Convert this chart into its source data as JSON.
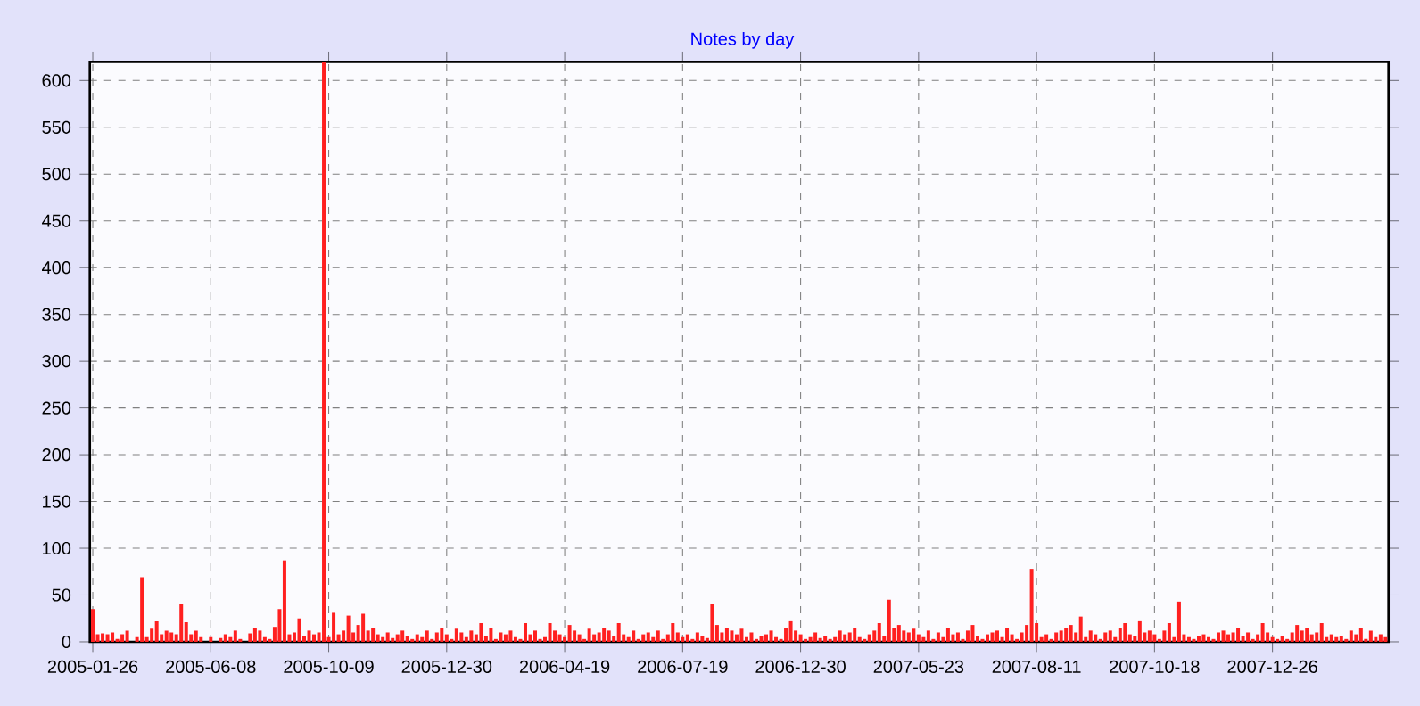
{
  "chart_data": {
    "type": "bar",
    "title": "Notes by day",
    "categories": [
      "2005-01-26",
      null,
      null,
      null,
      null,
      null,
      null,
      null,
      null,
      null,
      null,
      null,
      null,
      null,
      null,
      null,
      null,
      null,
      null,
      null,
      null,
      null,
      null,
      null,
      "2005-06-08",
      null,
      null,
      null,
      null,
      null,
      null,
      null,
      null,
      null,
      null,
      null,
      null,
      null,
      null,
      null,
      null,
      null,
      null,
      null,
      null,
      null,
      null,
      null,
      "2005-10-09",
      null,
      null,
      null,
      null,
      null,
      null,
      null,
      null,
      null,
      null,
      null,
      null,
      null,
      null,
      null,
      null,
      null,
      null,
      null,
      null,
      null,
      null,
      null,
      "2005-12-30",
      null,
      null,
      null,
      null,
      null,
      null,
      null,
      null,
      null,
      null,
      null,
      null,
      null,
      null,
      null,
      null,
      null,
      null,
      null,
      null,
      null,
      null,
      null,
      "2006-04-19",
      null,
      null,
      null,
      null,
      null,
      null,
      null,
      null,
      null,
      null,
      null,
      null,
      null,
      null,
      null,
      null,
      null,
      null,
      null,
      null,
      null,
      null,
      null,
      "2006-07-19",
      null,
      null,
      null,
      null,
      null,
      null,
      null,
      null,
      null,
      null,
      null,
      null,
      null,
      null,
      null,
      null,
      null,
      null,
      null,
      null,
      null,
      null,
      null,
      "2006-12-30",
      null,
      null,
      null,
      null,
      null,
      null,
      null,
      null,
      null,
      null,
      null,
      null,
      null,
      null,
      null,
      null,
      null,
      null,
      null,
      null,
      null,
      null,
      null,
      "2007-05-23",
      null,
      null,
      null,
      null,
      null,
      null,
      null,
      null,
      null,
      null,
      null,
      null,
      null,
      null,
      null,
      null,
      null,
      null,
      null,
      null,
      null,
      null,
      null,
      "2007-08-11",
      null,
      null,
      null,
      null,
      null,
      null,
      null,
      null,
      null,
      null,
      null,
      null,
      null,
      null,
      null,
      null,
      null,
      null,
      null,
      null,
      null,
      null,
      null,
      "2007-10-18",
      null,
      null,
      null,
      null,
      null,
      null,
      null,
      null,
      null,
      null,
      null,
      null,
      null,
      null,
      null,
      null,
      null,
      null,
      null,
      null,
      null,
      null,
      null,
      "2007-12-26",
      null,
      null,
      null,
      null,
      null,
      null,
      null,
      null,
      null,
      null,
      null,
      null,
      null,
      null,
      null,
      null,
      null,
      null,
      null,
      null,
      null,
      null,
      null
    ],
    "values": [
      35,
      8,
      9,
      8,
      10,
      3,
      8,
      12,
      0,
      5,
      69,
      5,
      14,
      22,
      8,
      12,
      10,
      8,
      40,
      21,
      8,
      12,
      5,
      0,
      5,
      0,
      4,
      8,
      5,
      12,
      3,
      0,
      9,
      15,
      12,
      5,
      3,
      16,
      35,
      87,
      8,
      10,
      25,
      6,
      12,
      8,
      10,
      620,
      5,
      31,
      8,
      12,
      28,
      10,
      18,
      30,
      12,
      15,
      8,
      5,
      10,
      4,
      8,
      12,
      6,
      3,
      8,
      5,
      12,
      3,
      10,
      15,
      8,
      3,
      14,
      10,
      5,
      12,
      8,
      20,
      6,
      15,
      3,
      10,
      8,
      12,
      5,
      3,
      20,
      8,
      12,
      3,
      5,
      20,
      12,
      8,
      5,
      18,
      12,
      8,
      3,
      14,
      8,
      10,
      15,
      12,
      6,
      20,
      8,
      5,
      12,
      3,
      8,
      10,
      5,
      12,
      3,
      8,
      20,
      10,
      5,
      8,
      3,
      10,
      6,
      4,
      40,
      18,
      10,
      15,
      12,
      8,
      14,
      5,
      10,
      3,
      6,
      8,
      12,
      5,
      3,
      15,
      22,
      12,
      8,
      3,
      5,
      10,
      4,
      6,
      3,
      5,
      12,
      8,
      10,
      15,
      5,
      3,
      8,
      12,
      20,
      6,
      45,
      15,
      18,
      12,
      10,
      14,
      8,
      5,
      12,
      3,
      10,
      5,
      15,
      8,
      10,
      3,
      12,
      18,
      6,
      3,
      8,
      10,
      12,
      5,
      15,
      8,
      3,
      10,
      18,
      78,
      20,
      5,
      8,
      3,
      10,
      12,
      15,
      18,
      10,
      27,
      5,
      12,
      8,
      3,
      10,
      12,
      5,
      15,
      20,
      8,
      6,
      22,
      10,
      12,
      8,
      3,
      12,
      20,
      5,
      43,
      8,
      5,
      3,
      6,
      8,
      5,
      3,
      10,
      12,
      8,
      10,
      15,
      6,
      10,
      3,
      8,
      20,
      10,
      5,
      3,
      6,
      3,
      10,
      18,
      12,
      15,
      8,
      10,
      20,
      5,
      8,
      5,
      6,
      3,
      12,
      8,
      15,
      3,
      12,
      5,
      8,
      5
    ],
    "color": "#ff2020",
    "ylim": [
      0,
      620
    ],
    "yticks": [
      0,
      50,
      100,
      150,
      200,
      250,
      300,
      350,
      400,
      450,
      500,
      550,
      600
    ],
    "grid": true
  }
}
